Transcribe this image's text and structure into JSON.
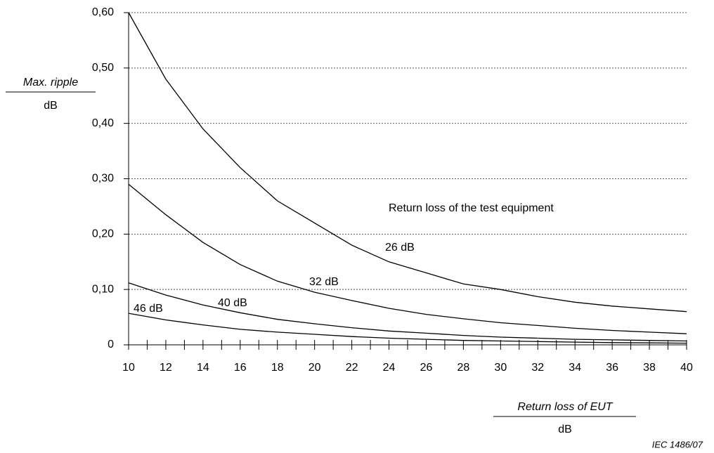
{
  "chart_data": {
    "type": "line",
    "y_label": "Max. ripple",
    "y_unit": "dB",
    "x_label": "Return loss of EUT",
    "x_unit": "dB",
    "annotation": "Return loss of the test equipment",
    "footnote": "IEC  1486/07",
    "x": [
      10,
      12,
      14,
      16,
      18,
      20,
      22,
      24,
      26,
      28,
      30,
      32,
      34,
      36,
      38,
      40
    ],
    "series": [
      {
        "name": "26 dB",
        "color": "#000000",
        "values": [
          0.6,
          0.48,
          0.39,
          0.32,
          0.26,
          0.22,
          0.18,
          0.15,
          0.13,
          0.11,
          0.1,
          0.087,
          0.077,
          0.07,
          0.065,
          0.06
        ]
      },
      {
        "name": "32 dB",
        "color": "#000000",
        "values": [
          0.29,
          0.235,
          0.185,
          0.145,
          0.115,
          0.095,
          0.08,
          0.066,
          0.055,
          0.047,
          0.04,
          0.035,
          0.03,
          0.026,
          0.023,
          0.02
        ]
      },
      {
        "name": "40 dB",
        "color": "#000000",
        "values": [
          0.112,
          0.09,
          0.072,
          0.058,
          0.046,
          0.038,
          0.031,
          0.025,
          0.021,
          0.017,
          0.014,
          0.012,
          0.01,
          0.009,
          0.008,
          0.007
        ]
      },
      {
        "name": "46 dB",
        "color": "#000000",
        "values": [
          0.057,
          0.045,
          0.036,
          0.028,
          0.023,
          0.019,
          0.015,
          0.012,
          0.01,
          0.008,
          0.007,
          0.006,
          0.005,
          0.004,
          0.0035,
          0.003
        ]
      }
    ],
    "xlim": [
      10,
      40
    ],
    "xticks": [
      10,
      12,
      14,
      16,
      18,
      20,
      22,
      24,
      26,
      28,
      30,
      32,
      34,
      36,
      38,
      40
    ],
    "xminorticks": [
      11,
      13,
      15,
      17,
      19,
      21,
      23,
      25,
      27,
      29,
      31,
      33,
      35,
      37,
      39
    ],
    "ylim": [
      0,
      0.6
    ],
    "yticks": [
      0,
      {
        "value": 0.1,
        "label": "0,10"
      },
      {
        "value": 0.2,
        "label": "0,20"
      },
      {
        "value": 0.3,
        "label": "0,30"
      },
      {
        "value": 0.4,
        "label": "0,40"
      },
      {
        "value": 0.5,
        "label": "0,50"
      },
      {
        "value": 0.6,
        "label": "0,60"
      }
    ],
    "grid": true
  }
}
